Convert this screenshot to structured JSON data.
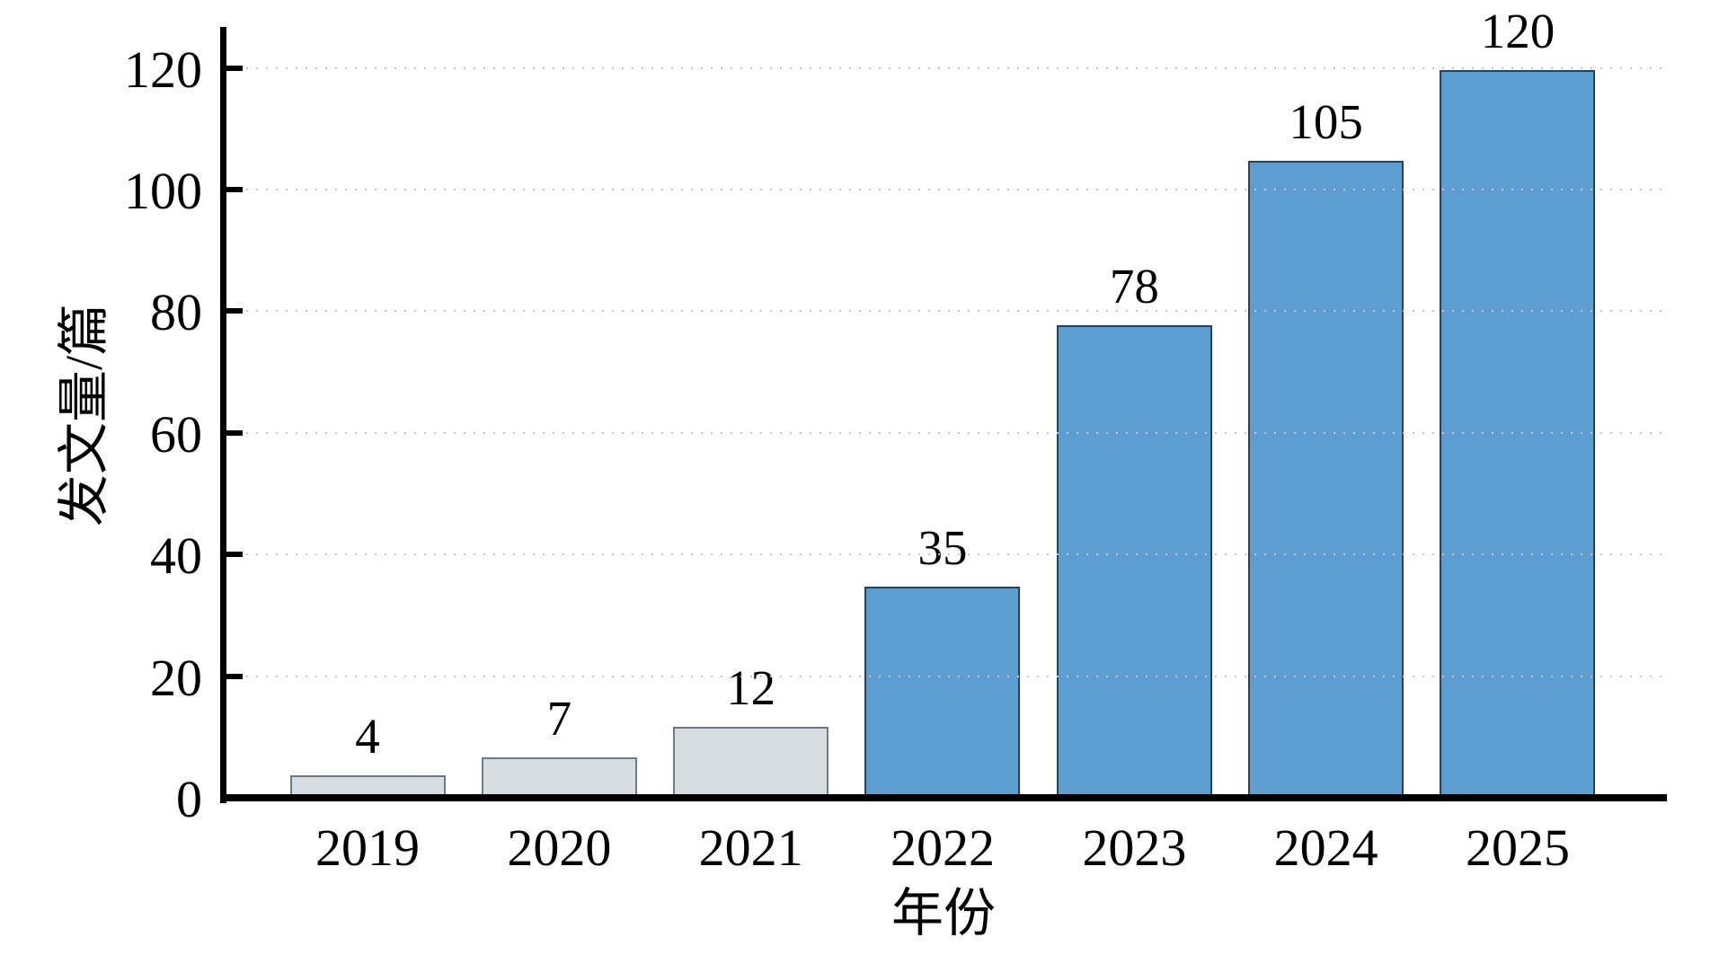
{
  "chart_data": {
    "type": "bar",
    "title": "",
    "categories": [
      "2019",
      "2020",
      "2021",
      "2022",
      "2023",
      "2024",
      "2025"
    ],
    "values": [
      4,
      7,
      12,
      35,
      78,
      105,
      120
    ],
    "xlabel": "年份",
    "ylabel": "发文量/篇",
    "yticks": [
      0,
      20,
      40,
      60,
      80,
      100,
      120
    ],
    "ylim": [
      0,
      126
    ],
    "grid": "horizontal-dotted",
    "legend": null,
    "bar_fills": [
      "#d8dde2",
      "#d8dde2",
      "#d8dde2",
      "#5c9ed1",
      "#5c9ed1",
      "#5c9ed1",
      "#5c9ed1"
    ],
    "bar_edges": [
      "#6d7b88",
      "#6d7b88",
      "#6d7b88",
      "#31404f",
      "#31404f",
      "#31404f",
      "#31404f"
    ]
  },
  "colors": {
    "axis": "#000000",
    "grid": "#c6c6c6",
    "text": "#000000",
    "background": "#ffffff"
  }
}
